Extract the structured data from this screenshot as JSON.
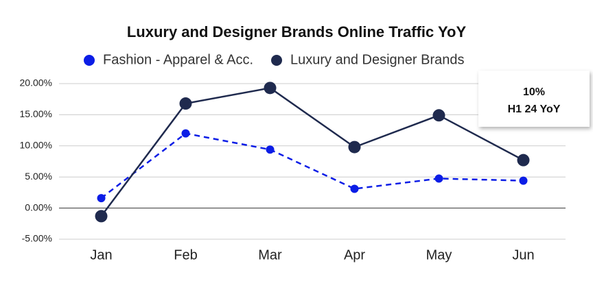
{
  "chart_data": {
    "type": "line",
    "title": "Luxury and Designer Brands Online Traffic YoY",
    "categories": [
      "Jan",
      "Feb",
      "Mar",
      "Apr",
      "May",
      "Jun"
    ],
    "series": [
      {
        "name": "Fashion - Apparel & Acc.",
        "color": "#0b1de6",
        "line_style": "dashed",
        "values": [
          1.6,
          12.0,
          9.4,
          3.1,
          4.75,
          4.4
        ]
      },
      {
        "name": "Luxury and Designer Brands",
        "color": "#1f2a4e",
        "line_style": "solid",
        "values": [
          -1.3,
          16.8,
          19.3,
          9.8,
          14.9,
          7.7
        ]
      }
    ],
    "ylim": [
      -5,
      20
    ],
    "yticks": [
      {
        "value": -5,
        "label": "-5.00%"
      },
      {
        "value": 0,
        "label": "0.00%"
      },
      {
        "value": 5,
        "label": "5.00%"
      },
      {
        "value": 10,
        "label": "10.00%"
      },
      {
        "value": 15,
        "label": "15.00%"
      },
      {
        "value": 20,
        "label": "20.00%"
      }
    ],
    "grid": true,
    "annotations": [
      "10%",
      "H1 24 YoY"
    ]
  }
}
